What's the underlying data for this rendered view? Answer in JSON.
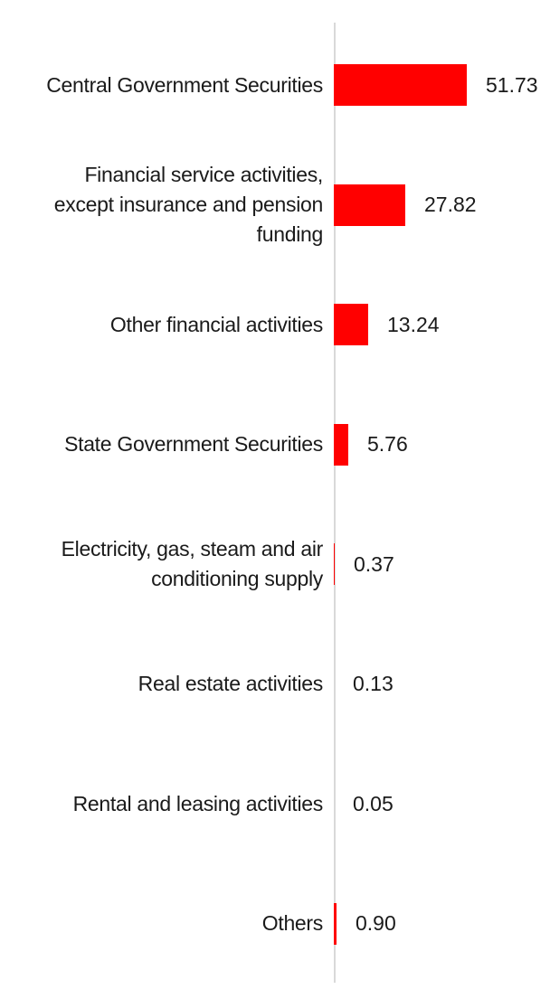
{
  "chart_data": {
    "type": "bar",
    "orientation": "horizontal",
    "title": "",
    "xlabel": "",
    "ylabel": "",
    "legend": "none",
    "grid": false,
    "data_label_position": "outside-end",
    "categories": [
      "Central Government Securities",
      "Financial service activities,\nexcept insurance and pension\nfunding",
      "Other financial activities",
      "State Government Securities",
      "Electricity, gas, steam and air\nconditioning supply",
      "Real estate activities",
      "Rental and leasing activities",
      "Others"
    ],
    "values": [
      51.73,
      27.82,
      13.24,
      5.76,
      0.37,
      0.13,
      0.05,
      0.9
    ],
    "value_labels": [
      "51.73",
      "27.82",
      "13.24",
      "5.76",
      "0.37",
      "0.13",
      "0.05",
      "0.90"
    ],
    "xlim": [
      0,
      55
    ],
    "colors": {
      "bar": "#FF0000",
      "axis": "#D9D9D9",
      "text": "#1A1A1A",
      "background": "#FFFFFF"
    }
  }
}
